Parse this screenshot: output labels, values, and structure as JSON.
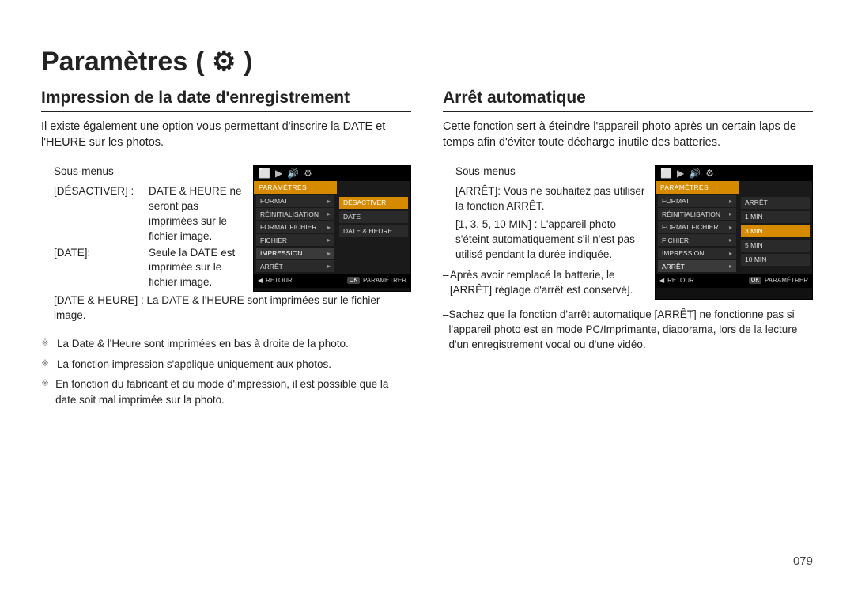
{
  "page_title": "Paramètres",
  "gear_glyph": "( ⚙ )",
  "page_number": "079",
  "left": {
    "section_title": "Impression de la date d'enregistrement",
    "intro": "Il existe également une option vous permettant d'inscrire la DATE et l'HEURE sur les photos.",
    "submenu_label": "Sous-menus",
    "defs": [
      {
        "term": "[DÉSACTIVER] :",
        "desc": "DATE & HEURE ne seront pas imprimées sur le fichier image."
      },
      {
        "term": "[DATE]:",
        "desc": "Seule la DATE est imprimée sur le fichier image."
      }
    ],
    "def_wide": "[DATE & HEURE] : La DATE & l'HEURE sont imprimées sur le fichier image.",
    "notes": [
      "La Date & l'Heure sont imprimées en bas à droite de la photo.",
      "La fonction impression s'applique uniquement aux photos.",
      "En fonction du fabricant et du mode d'impression, il est possible que la date soit mal imprimée sur la photo."
    ],
    "cam": {
      "header": "PARAMÈTRES",
      "left_items": [
        "FORMAT",
        "RÉINITIALISATION",
        "FORMAT FICHIER",
        "FICHIER",
        "IMPRESSION",
        "ARRÊT"
      ],
      "selected_left_index": 4,
      "right_items": [
        "DÉSACTIVER",
        "DATE",
        "DATE & HEURE"
      ],
      "selected_right_index": 0,
      "footer_back": "RETOUR",
      "footer_ok": "OK",
      "footer_set": "PARAMÉTRER",
      "back_glyph": "◀"
    }
  },
  "right": {
    "section_title": "Arrêt automatique",
    "intro": "Cette fonction sert à éteindre l'appareil photo après un certain laps de temps afin d'éviter toute décharge inutile des batteries.",
    "submenu_label": "Sous-menus",
    "bullet1_term": "[ARRÊT]:",
    "bullet1_desc": "Vous ne souhaitez pas utiliser la fonction ARRÊT.",
    "bullet2_term": "[1, 3, 5, 10 MIN] :",
    "bullet2_desc": "L'appareil photo s'éteint automatiquement s'il n'est pas utilisé pendant la durée indiquée.",
    "note_after": "Après avoir remplacé la batterie, le [ARRÊT] réglage d'arrêt est conservé].",
    "note_pc": "Sachez que la fonction d'arrêt automatique [ARRÊT] ne fonctionne pas si l'appareil photo est en mode PC/Imprimante, diaporama, lors de la lecture d'un enregistrement vocal ou d'une vidéo.",
    "cam": {
      "header": "PARAMÈTRES",
      "left_items": [
        "FORMAT",
        "RÉINITIALISATION",
        "FORMAT FICHIER",
        "FICHIER",
        "IMPRESSION",
        "ARRÊT"
      ],
      "selected_left_index": 5,
      "right_items": [
        "ARRÊT",
        "1 MIN",
        "3 MIN",
        "5 MIN",
        "10 MIN"
      ],
      "selected_right_index": 2,
      "footer_back": "RETOUR",
      "footer_ok": "OK",
      "footer_set": "PARAMÉTRER",
      "back_glyph": "◀"
    }
  },
  "top_icons": [
    "⬜",
    "▶",
    "🔊",
    "⚙"
  ]
}
